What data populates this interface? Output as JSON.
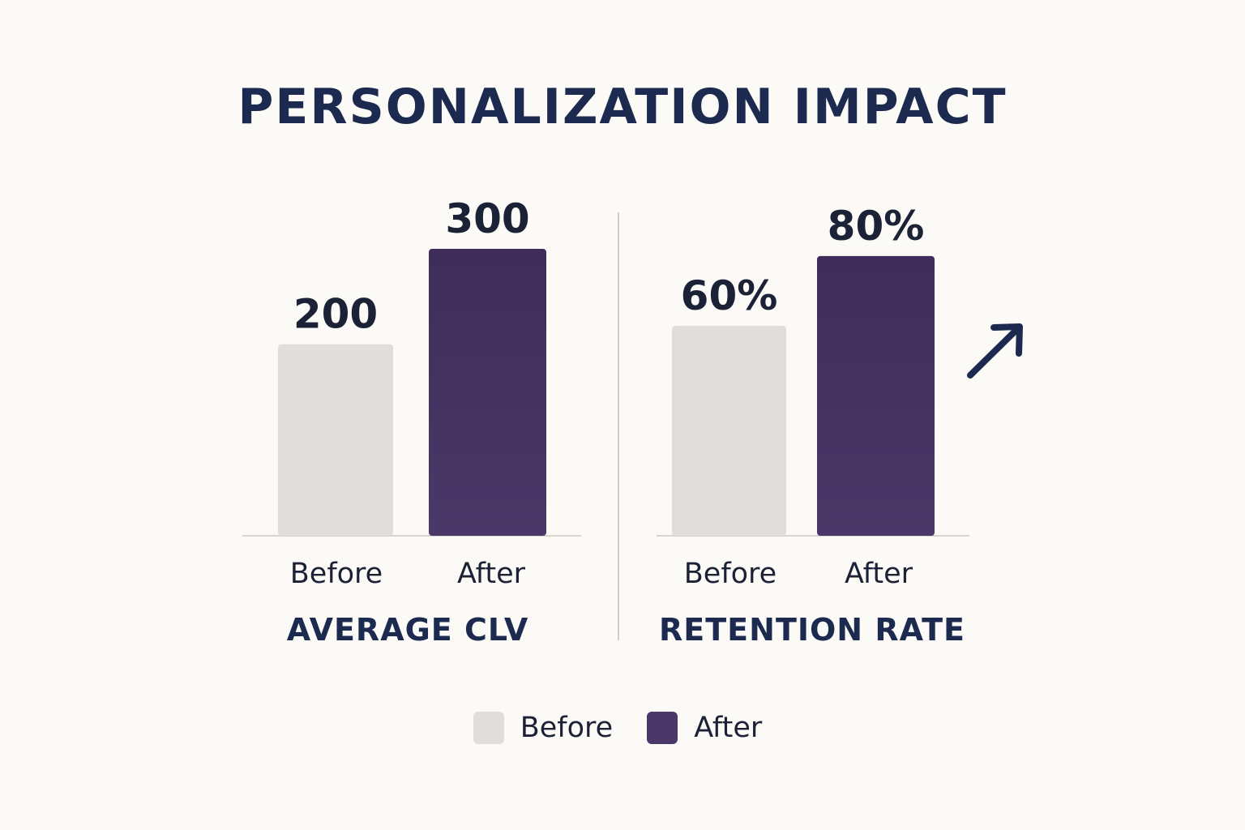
{
  "title": "PERSONALIZATION IMPACT",
  "colors": {
    "before": "#e0dedb",
    "after_top": "#3e2c5a",
    "after_bottom": "#4a3868",
    "axis": "#d8d5d0",
    "divider": "#d0cdc8",
    "value_text": "#1c2236",
    "label_text": "#1c2236",
    "group_title": "#1b2a4e",
    "arrow": "#1b2a4e"
  },
  "legend": {
    "before_label": "Before",
    "after_label": "After"
  },
  "trend_icon": "arrow-up-right-icon",
  "chart_data": [
    {
      "type": "bar",
      "title": "AVERAGE CLV",
      "categories": [
        "Before",
        "After"
      ],
      "values": [
        200,
        300
      ],
      "value_labels": [
        "200",
        "300"
      ],
      "ylim": [
        0,
        340
      ],
      "grid": false
    },
    {
      "type": "bar",
      "title": "RETENTION RATE",
      "categories": [
        "Before",
        "After"
      ],
      "values": [
        60,
        80
      ],
      "value_labels": [
        "60%",
        "80%"
      ],
      "ylim": [
        0,
        93
      ],
      "grid": false
    }
  ]
}
